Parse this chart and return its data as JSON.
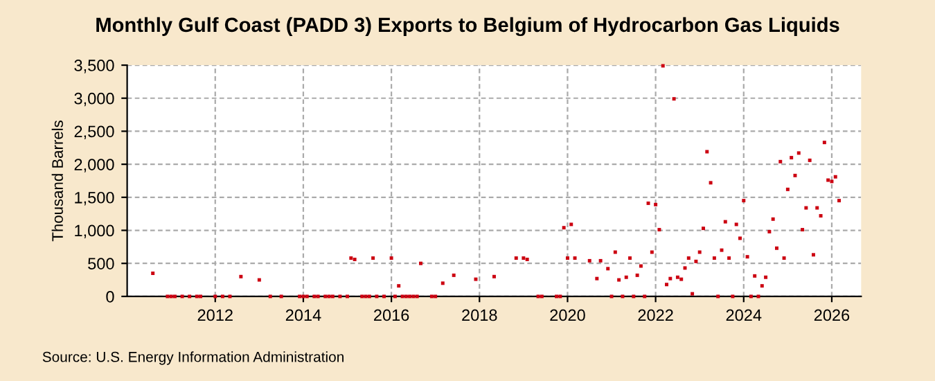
{
  "chart_data": {
    "type": "scatter",
    "title": "Monthly Gulf Coast (PADD 3) Exports to Belgium of Hydrocarbon Gas Liquids",
    "ylabel": "Thousand Barrels",
    "annotations": [
      "Source: U.S. Energy Information Administration"
    ],
    "x": [
      "2010-08",
      "2010-12",
      "2011-01",
      "2011-02",
      "2011-04",
      "2011-06",
      "2011-08",
      "2011-09",
      "2012-01",
      "2012-03",
      "2012-05",
      "2012-08",
      "2013-01",
      "2013-04",
      "2013-07",
      "2013-12",
      "2014-01",
      "2014-02",
      "2014-04",
      "2014-05",
      "2014-07",
      "2014-08",
      "2014-09",
      "2014-11",
      "2015-01",
      "2015-02",
      "2015-03",
      "2015-05",
      "2015-06",
      "2015-07",
      "2015-08",
      "2015-09",
      "2015-11",
      "2016-01",
      "2016-02",
      "2016-03",
      "2016-04",
      "2016-05",
      "2016-06",
      "2016-07",
      "2016-08",
      "2016-09",
      "2016-12",
      "2017-01",
      "2017-03",
      "2017-06",
      "2017-12",
      "2018-05",
      "2018-11",
      "2019-01",
      "2019-02",
      "2019-05",
      "2019-06",
      "2019-10",
      "2019-11",
      "2019-12",
      "2020-01",
      "2020-02",
      "2020-03",
      "2020-07",
      "2020-09",
      "2020-10",
      "2020-12",
      "2021-01",
      "2021-02",
      "2021-03",
      "2021-04",
      "2021-05",
      "2021-06",
      "2021-07",
      "2021-08",
      "2021-09",
      "2021-10",
      "2021-11",
      "2021-12",
      "2022-01",
      "2022-02",
      "2022-03",
      "2022-04",
      "2022-05",
      "2022-06",
      "2022-07",
      "2022-08",
      "2022-09",
      "2022-10",
      "2022-11",
      "2022-12",
      "2023-01",
      "2023-02",
      "2023-03",
      "2023-04",
      "2023-05",
      "2023-06",
      "2023-07",
      "2023-08",
      "2023-09",
      "2023-10",
      "2023-11",
      "2023-12",
      "2024-01",
      "2024-02",
      "2024-03",
      "2024-04",
      "2024-05",
      "2024-06",
      "2024-07",
      "2024-08",
      "2024-09",
      "2024-10",
      "2024-11",
      "2024-12",
      "2025-01",
      "2025-02",
      "2025-03",
      "2025-04",
      "2025-05",
      "2025-06",
      "2025-07",
      "2025-08",
      "2025-09",
      "2025-10",
      "2025-11",
      "2025-12",
      "2026-01",
      "2026-02",
      "2026-03"
    ],
    "series": [
      {
        "color": "#cc0011",
        "values": [
          350,
          0,
          0,
          0,
          0,
          0,
          0,
          0,
          0,
          0,
          0,
          300,
          250,
          0,
          0,
          0,
          0,
          0,
          0,
          0,
          0,
          0,
          0,
          0,
          0,
          580,
          560,
          0,
          0,
          0,
          580,
          0,
          0,
          580,
          0,
          160,
          0,
          0,
          0,
          0,
          0,
          500,
          0,
          0,
          200,
          320,
          260,
          300,
          580,
          580,
          560,
          0,
          0,
          0,
          0,
          1040,
          580,
          1090,
          580,
          540,
          270,
          540,
          420,
          0,
          670,
          250,
          0,
          290,
          580,
          0,
          320,
          460,
          0,
          1410,
          670,
          1390,
          1010,
          3490,
          180,
          270,
          2990,
          290,
          260,
          430,
          580,
          40,
          530,
          670,
          1030,
          2190,
          1720,
          580,
          0,
          700,
          1130,
          580,
          0,
          1090,
          880,
          1450,
          600,
          0,
          310,
          0,
          160,
          290,
          980,
          1170,
          730,
          2040,
          580,
          1620,
          2100,
          1830,
          2170,
          1010,
          1340,
          2060,
          630,
          1340,
          1220,
          2330,
          1760,
          1740,
          1810,
          1450
        ]
      }
    ],
    "xlim": [
      "2010-01",
      "2026-09"
    ],
    "xticks": [
      "2012",
      "2014",
      "2016",
      "2018",
      "2020",
      "2022",
      "2024",
      "2026"
    ],
    "ylim": [
      0,
      3500
    ],
    "yticks": [
      {
        "value": 0,
        "label": "0"
      },
      {
        "value": 500,
        "label": "500"
      },
      {
        "value": 1000,
        "label": "1,000"
      },
      {
        "value": 1500,
        "label": "1,500"
      },
      {
        "value": 2000,
        "label": "2,000"
      },
      {
        "value": 2500,
        "label": "2,500"
      },
      {
        "value": 3000,
        "label": "3,000"
      },
      {
        "value": 3500,
        "label": "3,500"
      }
    ],
    "grid": true,
    "marker": "square"
  }
}
